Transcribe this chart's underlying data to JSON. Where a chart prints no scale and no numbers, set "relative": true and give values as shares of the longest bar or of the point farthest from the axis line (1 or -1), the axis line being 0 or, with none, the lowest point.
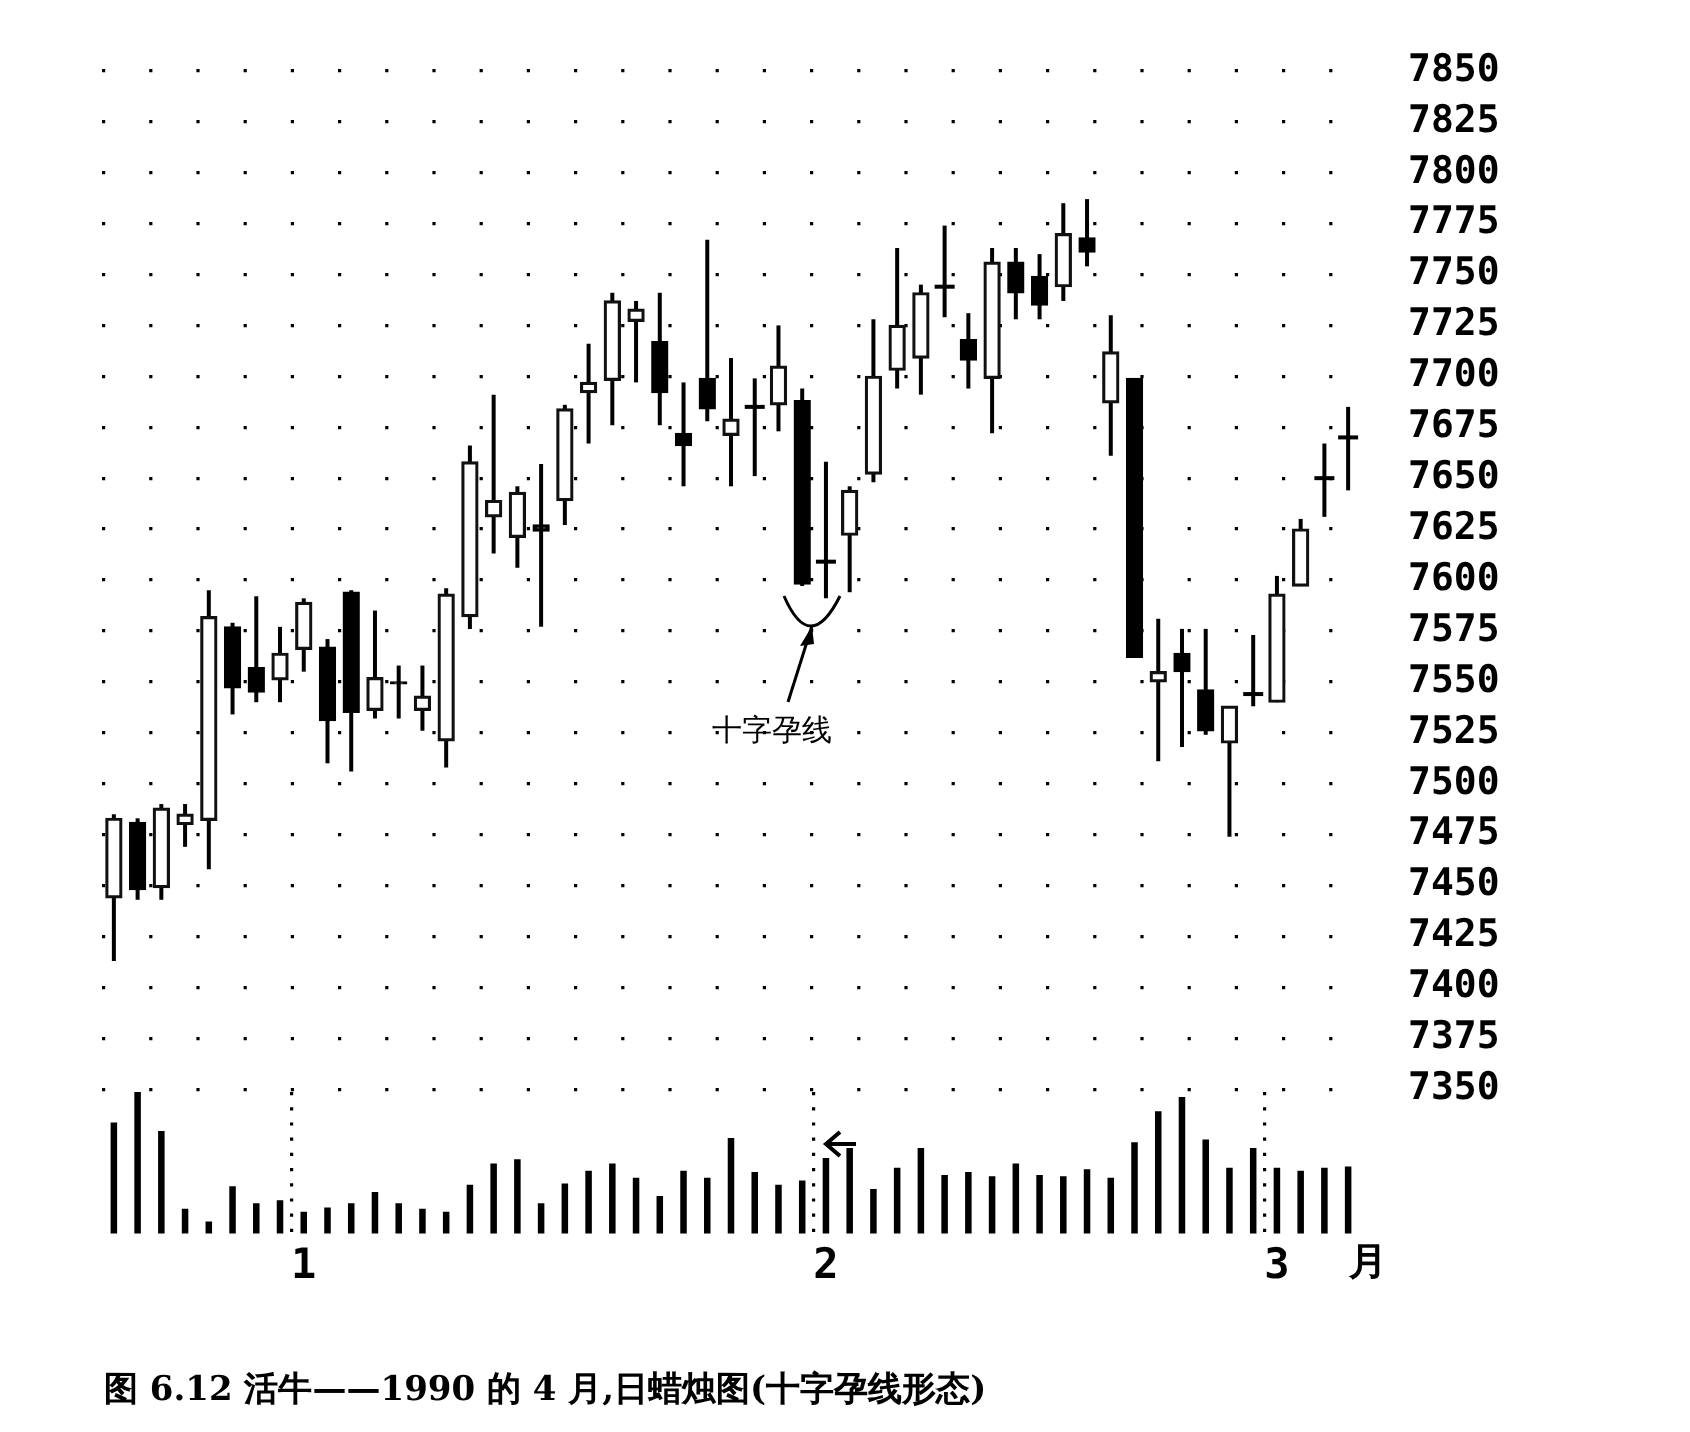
{
  "chart_data": [
    {
      "type": "candlestick",
      "categories": [
        null,
        null,
        null,
        null,
        null,
        null,
        null,
        null,
        null,
        null,
        null,
        null,
        null,
        null,
        null,
        null,
        null,
        null,
        null,
        null,
        null,
        null,
        null,
        null,
        null,
        null,
        null,
        null,
        null,
        null,
        null,
        null,
        null,
        null,
        null,
        null,
        null,
        null,
        null,
        null,
        null,
        null,
        null,
        null,
        null,
        null,
        null,
        null,
        null,
        null,
        null,
        null,
        null
      ],
      "ohlc": [
        [
          7444,
          7485,
          7413,
          7483
        ],
        [
          7481,
          7483,
          7443,
          7448
        ],
        [
          7449,
          7490,
          7443,
          7488
        ],
        [
          7480,
          7490,
          7469,
          7485
        ],
        [
          7482,
          7595,
          7458,
          7582
        ],
        [
          7577,
          7579,
          7534,
          7547
        ],
        [
          7557,
          7592,
          7540,
          7545
        ],
        [
          7551,
          7577,
          7540,
          7564
        ],
        [
          7566,
          7591,
          7555,
          7589
        ],
        [
          7567,
          7571,
          7510,
          7531
        ],
        [
          7594,
          7595,
          7506,
          7535
        ],
        [
          7536,
          7585,
          7532,
          7552
        ],
        [
          7550,
          7558,
          7532,
          7549
        ],
        [
          7536,
          7558,
          7526,
          7543
        ],
        [
          7521,
          7596,
          7508,
          7593
        ],
        [
          7582,
          7666,
          7576,
          7658
        ],
        [
          7631,
          7691,
          7613,
          7639
        ],
        [
          7621,
          7646,
          7606,
          7643
        ],
        [
          7627,
          7657,
          7577,
          7624
        ],
        [
          7639,
          7686,
          7627,
          7684
        ],
        [
          7692,
          7716,
          7667,
          7697
        ],
        [
          7698,
          7741,
          7676,
          7737
        ],
        [
          7727,
          7737,
          7697,
          7733
        ],
        [
          7717,
          7741,
          7676,
          7692
        ],
        [
          7672,
          7697,
          7646,
          7666
        ],
        [
          7699,
          7767,
          7678,
          7684
        ],
        [
          7671,
          7709,
          7646,
          7679
        ],
        [
          7685,
          7699,
          7651,
          7685
        ],
        [
          7686,
          7725,
          7673,
          7705
        ],
        [
          7688,
          7694,
          7597,
          7598
        ],
        [
          7609,
          7658,
          7591,
          7609
        ],
        [
          7622,
          7646,
          7594,
          7644
        ],
        [
          7652,
          7728,
          7648,
          7700
        ],
        [
          7703,
          7763,
          7694,
          7725
        ],
        [
          7709,
          7745,
          7691,
          7741
        ],
        [
          7744,
          7774,
          7729,
          7744
        ],
        [
          7718,
          7731,
          7694,
          7708
        ],
        [
          7699,
          7763,
          7672,
          7756
        ],
        [
          7756,
          7763,
          7728,
          7741
        ],
        [
          7749,
          7760,
          7728,
          7735
        ],
        [
          7744,
          7785,
          7737,
          7770
        ],
        [
          7768,
          7787,
          7754,
          7761
        ],
        [
          7687,
          7730,
          7661,
          7712
        ],
        [
          7699,
          7699,
          7562,
          7562
        ],
        [
          7550,
          7581,
          7511,
          7555
        ],
        [
          7564,
          7576,
          7518,
          7555
        ],
        [
          7546,
          7576,
          7524,
          7526
        ],
        [
          7520,
          7538,
          7474,
          7538
        ],
        [
          7544,
          7573,
          7538,
          7544
        ],
        [
          7540,
          7602,
          7540,
          7593
        ],
        [
          7597,
          7630,
          7597,
          7625
        ],
        [
          7650,
          7667,
          7631,
          7650
        ],
        [
          7670,
          7685,
          7644,
          7670
        ]
      ],
      "ylim": [
        7350,
        7850
      ],
      "yticks": [
        7350,
        7375,
        7400,
        7425,
        7450,
        7475,
        7500,
        7525,
        7550,
        7575,
        7600,
        7625,
        7650,
        7675,
        7700,
        7725,
        7750,
        7775,
        7800,
        7825,
        7850
      ],
      "grid": "y",
      "tick_labels": "y",
      "annotations": [
        "十字孕线",
        "图 6.12  活牛——1990 的 4 月,日蜡烛图(十字孕线形态)"
      ]
    },
    {
      "type": "bar",
      "categories": [
        null,
        null,
        null,
        null,
        null,
        null,
        null,
        null,
        "1",
        null,
        null,
        null,
        null,
        null,
        null,
        null,
        null,
        null,
        null,
        null,
        null,
        null,
        null,
        null,
        null,
        null,
        null,
        null,
        null,
        null,
        "2",
        null,
        null,
        null,
        null,
        null,
        null,
        null,
        null,
        null,
        null,
        null,
        null,
        null,
        null,
        null,
        null,
        null,
        null,
        "3",
        null,
        null,
        null
      ],
      "values": [
        0.78,
        1,
        0.72,
        0.17,
        0.08,
        0.33,
        0.21,
        0.23,
        0.15,
        0.18,
        0.21,
        0.29,
        0.21,
        0.17,
        0.15,
        0.34,
        0.49,
        0.52,
        0.21,
        0.35,
        0.44,
        0.49,
        0.39,
        0.26,
        0.44,
        0.39,
        0.67,
        0.43,
        0.34,
        0.37,
        0.53,
        0.6,
        0.31,
        0.46,
        0.6,
        0.41,
        0.43,
        0.4,
        0.49,
        0.41,
        0.4,
        0.45,
        0.39,
        0.64,
        0.86,
        0.96,
        0.66,
        0.46,
        0.6,
        0.46,
        0.44,
        0.46,
        0.47
      ],
      "color": "#000000",
      "relative": true,
      "xlabel": "月",
      "grid": "x",
      "tick_labels": "x"
    }
  ]
}
